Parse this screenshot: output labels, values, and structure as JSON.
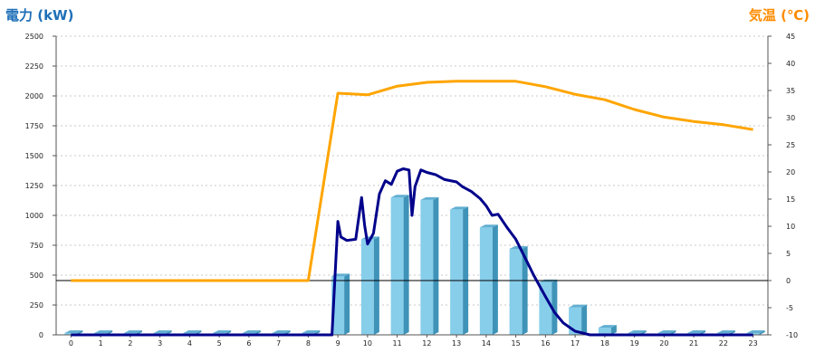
{
  "chart_data": {
    "type": "bar",
    "title_left": "電力 (kW)",
    "title_right": "気温 (℃)",
    "categories": [
      "0",
      "1",
      "2",
      "3",
      "4",
      "5",
      "6",
      "7",
      "8",
      "9",
      "10",
      "11",
      "12",
      "13",
      "14",
      "15",
      "16",
      "17",
      "18",
      "19",
      "20",
      "21",
      "22",
      "23"
    ],
    "series": [
      {
        "kind": "bar",
        "axis": "left",
        "values": [
          0,
          0,
          0,
          0,
          0,
          0,
          0,
          0,
          0,
          490,
          800,
          1150,
          1130,
          1050,
          900,
          720,
          440,
          230,
          60,
          0,
          0,
          0,
          0,
          0
        ]
      },
      {
        "kind": "line",
        "axis": "left",
        "x": [
          0,
          1,
          2,
          3,
          4,
          5,
          6,
          7,
          8,
          8.8,
          9,
          9.1,
          9.3,
          9.6,
          9.8,
          9.9,
          10,
          10.2,
          10.4,
          10.6,
          10.8,
          11,
          11.2,
          11.4,
          11.5,
          11.6,
          11.8,
          12,
          12.3,
          12.6,
          13,
          13.2,
          13.5,
          13.8,
          14,
          14.2,
          14.4,
          14.7,
          15,
          15.3,
          15.6,
          15.8,
          16,
          16.3,
          16.6,
          17,
          17.5,
          17.8,
          18,
          18.2,
          19,
          20,
          21,
          22,
          23
        ],
        "values": [
          0,
          0,
          0,
          0,
          0,
          0,
          0,
          0,
          0,
          0,
          950,
          820,
          790,
          800,
          1150,
          920,
          760,
          850,
          1180,
          1290,
          1260,
          1370,
          1390,
          1380,
          1000,
          1240,
          1380,
          1360,
          1340,
          1300,
          1280,
          1240,
          1200,
          1140,
          1080,
          1000,
          1010,
          900,
          800,
          650,
          500,
          410,
          320,
          190,
          100,
          30,
          0,
          0,
          0,
          0,
          0,
          0,
          0,
          0,
          0
        ]
      },
      {
        "kind": "line",
        "axis": "right",
        "x": [
          0,
          1,
          2,
          3,
          4,
          5,
          6,
          7,
          8,
          9,
          10,
          11,
          12,
          13,
          14,
          15,
          16,
          17,
          18,
          19,
          20,
          21,
          22,
          23
        ],
        "values": [
          0,
          0,
          0,
          0,
          0,
          0,
          0,
          0,
          0,
          34.5,
          34.2,
          35.8,
          36.5,
          36.7,
          36.7,
          36.7,
          35.7,
          34.3,
          33.3,
          31.5,
          30.1,
          29.3,
          28.7,
          27.8
        ]
      }
    ],
    "y_left": {
      "ticks": [
        "0",
        "250",
        "500",
        "750",
        "1000",
        "1250",
        "1500",
        "1750",
        "2000",
        "2250",
        "2500"
      ],
      "ylim": [
        0,
        2500
      ]
    },
    "y_right": {
      "ticks": [
        "-10",
        "-5",
        "0",
        "5",
        "10",
        "15",
        "20",
        "25",
        "30",
        "35",
        "40",
        "45"
      ],
      "ylim": [
        -10,
        45
      ]
    },
    "grid": true,
    "colors": {
      "bar_front": "#87ceeb",
      "bar_side": "#3f93b8",
      "bar_top": "#62afd2",
      "power_line": "#00008b",
      "temp_line": "#ffa500",
      "title_left": "#1e6fb8",
      "title_right": "#ff8c00",
      "grid": "#c8c8c8"
    }
  }
}
